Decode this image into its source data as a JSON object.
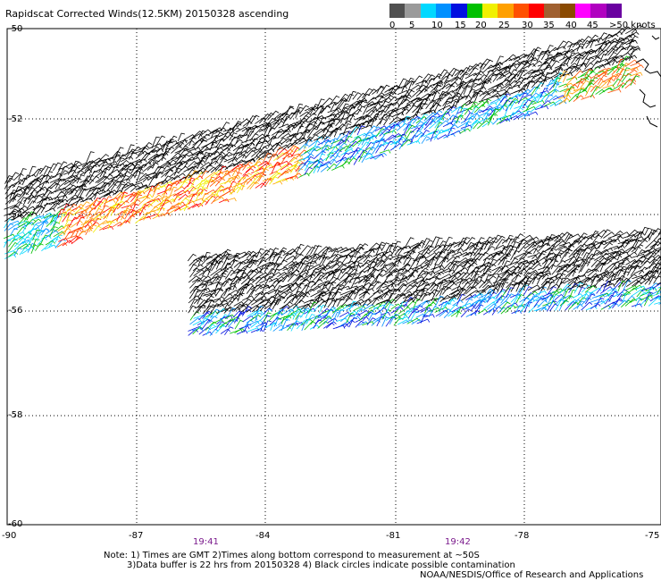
{
  "title": "Rapidscat Corrected Winds(12.5KM) 20150328 ascending",
  "legend": {
    "labels": [
      "0",
      "5",
      "10",
      "15",
      "20",
      "25",
      "30",
      "35",
      "40",
      "45",
      ">50 knots"
    ],
    "colors": [
      "#505050",
      "#9a9a9a",
      "#00d8ff",
      "#0090ff",
      "#0010e0",
      "#00c000",
      "#f0f000",
      "#ffa000",
      "#ff5000",
      "#ff0000",
      "#a06030",
      "#8a4a00",
      "#ff00ff",
      "#b000c0",
      "#6a00a0"
    ]
  },
  "axes": {
    "lat_labels": [
      "-50",
      "-52",
      "-54",
      "-56",
      "-58",
      "-60"
    ],
    "lon_labels": [
      "-90",
      "-87",
      "-84",
      "-81",
      "-78",
      "-75"
    ]
  },
  "times": [
    "19:41",
    "19:42"
  ],
  "notes": {
    "line1": "Note: 1) Times are GMT 2)Times along bottom correspond to measurement at ~50S",
    "line2": "3)Data buffer is 22 hrs from 20150328 4) Black circles indicate possible contamination",
    "credit": "NOAA/NESDIS/Office of Research and Applications"
  }
}
